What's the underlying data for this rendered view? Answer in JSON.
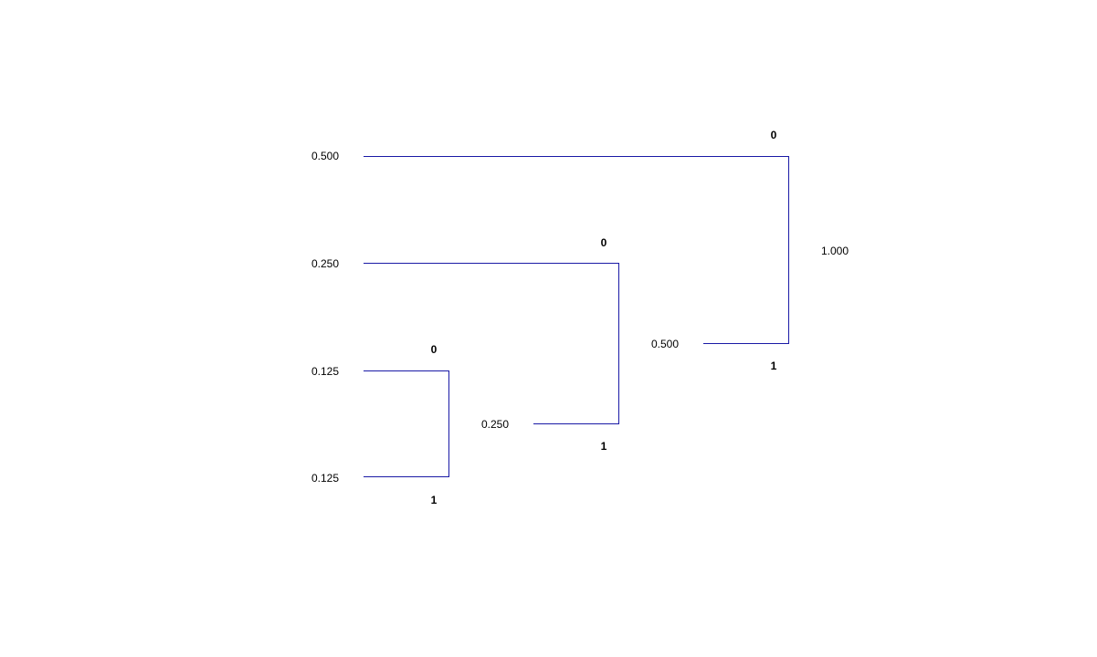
{
  "colors": {
    "edge": "#1a1aa6",
    "text": "#000000",
    "background": "#ffffff"
  },
  "leaves": [
    {
      "id": "leaf-a",
      "probability": "0.500"
    },
    {
      "id": "leaf-b",
      "probability": "0.250"
    },
    {
      "id": "leaf-c",
      "probability": "0.125"
    },
    {
      "id": "leaf-d",
      "probability": "0.125"
    }
  ],
  "internal_nodes": [
    {
      "id": "node-cd",
      "probability": "0.250",
      "upper_bit": "0",
      "lower_bit": "1"
    },
    {
      "id": "node-bcd",
      "probability": "0.500",
      "upper_bit": "0",
      "lower_bit": "1"
    },
    {
      "id": "root",
      "probability": "1.000",
      "upper_bit": "0",
      "lower_bit": "1"
    }
  ]
}
